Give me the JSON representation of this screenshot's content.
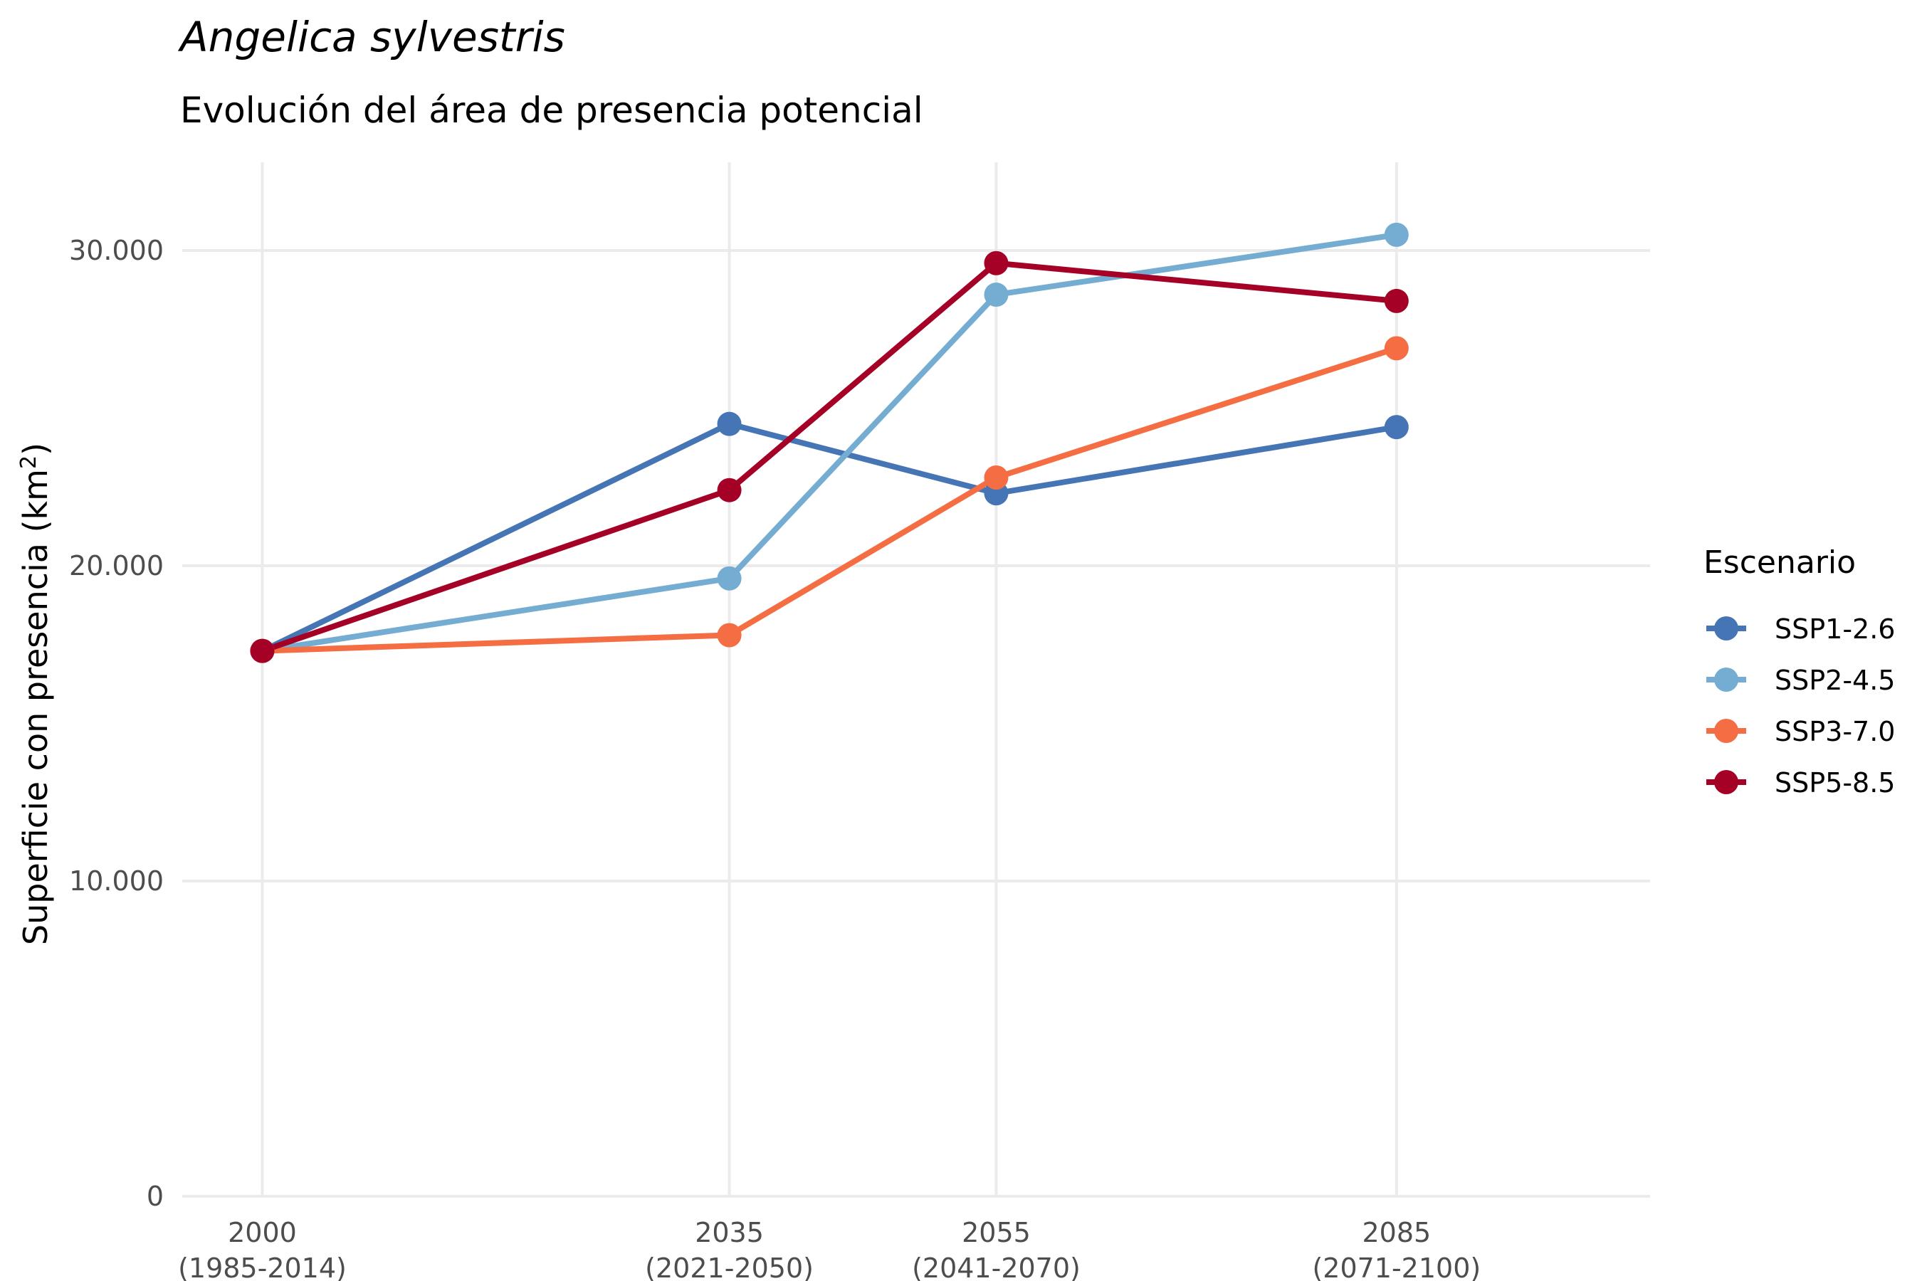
{
  "chart_data": {
    "type": "line",
    "title": "Angelica sylvestris",
    "subtitle": "Evolución del área de presencia potencial",
    "ylabel_main": "Superficie con presencia (km",
    "ylabel_sup": "2",
    "ylabel_close": ")",
    "x": [
      2000,
      2035,
      2055,
      2085
    ],
    "x_tick_labels": [
      {
        "year": "2000",
        "period": "(1985-2014)"
      },
      {
        "year": "2035",
        "period": "(2021-2050)"
      },
      {
        "year": "2055",
        "period": "(2041-2070)"
      },
      {
        "year": "2085",
        "period": "(2071-2100)"
      }
    ],
    "xlim": [
      1994,
      2104
    ],
    "ylim": [
      0,
      32800
    ],
    "y_ticks": [
      {
        "value": 0,
        "label": "0"
      },
      {
        "value": 10000,
        "label": "10.000"
      },
      {
        "value": 20000,
        "label": "20.000"
      },
      {
        "value": 30000,
        "label": "30.000"
      }
    ],
    "grid": true,
    "legend": {
      "title": "Escenario",
      "position": "right"
    },
    "series": [
      {
        "name": "SSP1-2.6",
        "color": "#4575b4",
        "values": [
          17300,
          24500,
          22300,
          24400
        ]
      },
      {
        "name": "SSP2-4.5",
        "color": "#74add1",
        "values": [
          17300,
          19600,
          28600,
          30500
        ]
      },
      {
        "name": "SSP3-7.0",
        "color": "#f46d43",
        "values": [
          17300,
          17800,
          22800,
          26900
        ]
      },
      {
        "name": "SSP5-8.5",
        "color": "#a50026",
        "values": [
          17300,
          22400,
          29600,
          28400
        ]
      }
    ]
  }
}
